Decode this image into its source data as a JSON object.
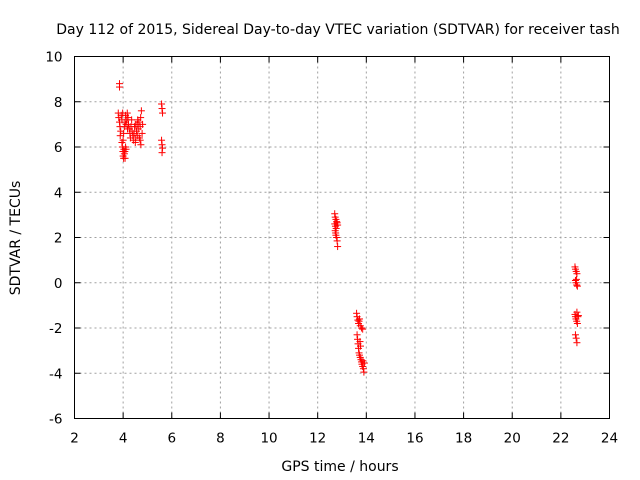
{
  "chart_data": {
    "type": "scatter",
    "title": "Day 112 of 2015, Sidereal Day-to-day VTEC variation (SDTVAR) for receiver tash",
    "xlabel": "GPS time / hours",
    "ylabel": "SDTVAR / TECUs",
    "xlim": [
      2,
      24
    ],
    "ylim": [
      -6,
      10
    ],
    "xticks": [
      2,
      4,
      6,
      8,
      10,
      12,
      14,
      16,
      18,
      20,
      22,
      24
    ],
    "yticks": [
      -6,
      -4,
      -2,
      0,
      2,
      4,
      6,
      8,
      10
    ],
    "grid": true,
    "marker": "+",
    "color": "#ff0000",
    "series": [
      {
        "name": "SDTVAR",
        "points": [
          [
            3.85,
            8.8
          ],
          [
            3.85,
            8.65
          ],
          [
            3.8,
            7.5
          ],
          [
            3.82,
            7.3
          ],
          [
            3.85,
            7.1
          ],
          [
            3.87,
            6.9
          ],
          [
            3.9,
            6.7
          ],
          [
            3.88,
            6.5
          ],
          [
            3.92,
            7.4
          ],
          [
            3.95,
            7.2
          ],
          [
            3.98,
            7.5
          ],
          [
            3.95,
            6.2
          ],
          [
            3.97,
            6.0
          ],
          [
            3.99,
            5.8
          ],
          [
            4.0,
            5.6
          ],
          [
            4.02,
            5.5
          ],
          [
            4.05,
            5.7
          ],
          [
            4.03,
            5.9
          ],
          [
            4.07,
            5.8
          ],
          [
            4.1,
            6.0
          ],
          [
            4.12,
            5.9
          ],
          [
            4.08,
            5.5
          ],
          [
            4.0,
            6.3
          ],
          [
            4.02,
            6.6
          ],
          [
            4.05,
            6.9
          ],
          [
            4.08,
            7.1
          ],
          [
            4.1,
            7.4
          ],
          [
            4.12,
            7.0
          ],
          [
            4.15,
            7.2
          ],
          [
            4.17,
            7.5
          ],
          [
            4.2,
            7.3
          ],
          [
            4.18,
            6.8
          ],
          [
            4.22,
            7.0
          ],
          [
            4.25,
            6.8
          ],
          [
            4.28,
            6.6
          ],
          [
            4.3,
            6.4
          ],
          [
            4.32,
            6.9
          ],
          [
            4.35,
            7.2
          ],
          [
            4.37,
            6.7
          ],
          [
            4.4,
            6.5
          ],
          [
            4.42,
            6.3
          ],
          [
            4.45,
            6.6
          ],
          [
            4.47,
            6.9
          ],
          [
            4.5,
            6.2
          ],
          [
            4.52,
            6.4
          ],
          [
            4.55,
            6.7
          ],
          [
            4.57,
            7.0
          ],
          [
            4.6,
            6.5
          ],
          [
            4.62,
            6.8
          ],
          [
            4.65,
            7.1
          ],
          [
            4.67,
            6.4
          ],
          [
            4.7,
            6.9
          ],
          [
            4.72,
            7.3
          ],
          [
            4.75,
            7.6
          ],
          [
            4.7,
            6.3
          ],
          [
            4.73,
            6.1
          ],
          [
            4.78,
            6.6
          ],
          [
            4.8,
            7.0
          ],
          [
            4.6,
            7.2
          ],
          [
            4.5,
            7.0
          ],
          [
            5.58,
            7.9
          ],
          [
            5.6,
            7.7
          ],
          [
            5.62,
            7.5
          ],
          [
            5.58,
            6.3
          ],
          [
            5.6,
            6.1
          ],
          [
            5.62,
            5.95
          ],
          [
            5.6,
            5.75
          ],
          [
            12.7,
            3.05
          ],
          [
            12.72,
            2.9
          ],
          [
            12.75,
            2.8
          ],
          [
            12.78,
            2.7
          ],
          [
            12.7,
            2.6
          ],
          [
            12.73,
            2.5
          ],
          [
            12.76,
            2.4
          ],
          [
            12.8,
            2.65
          ],
          [
            12.82,
            2.55
          ],
          [
            12.72,
            2.3
          ],
          [
            12.75,
            2.1
          ],
          [
            12.78,
            2.0
          ],
          [
            12.8,
            1.85
          ],
          [
            12.82,
            1.6
          ],
          [
            12.74,
            2.2
          ],
          [
            13.6,
            -1.35
          ],
          [
            13.62,
            -1.5
          ],
          [
            13.65,
            -1.65
          ],
          [
            13.68,
            -1.8
          ],
          [
            13.7,
            -1.7
          ],
          [
            13.72,
            -1.6
          ],
          [
            13.75,
            -1.9
          ],
          [
            13.8,
            -2.0
          ],
          [
            13.85,
            -2.05
          ],
          [
            13.62,
            -2.3
          ],
          [
            13.64,
            -2.5
          ],
          [
            13.66,
            -2.7
          ],
          [
            13.68,
            -2.9
          ],
          [
            13.7,
            -3.1
          ],
          [
            13.72,
            -3.2
          ],
          [
            13.75,
            -3.3
          ],
          [
            13.78,
            -3.4
          ],
          [
            13.8,
            -3.5
          ],
          [
            13.82,
            -3.6
          ],
          [
            13.85,
            -3.7
          ],
          [
            13.88,
            -3.8
          ],
          [
            13.9,
            -3.95
          ],
          [
            13.86,
            -3.45
          ],
          [
            13.92,
            -3.55
          ],
          [
            13.76,
            -2.8
          ],
          [
            13.74,
            -2.6
          ],
          [
            22.58,
            0.7
          ],
          [
            22.6,
            0.6
          ],
          [
            22.63,
            0.5
          ],
          [
            22.66,
            0.4
          ],
          [
            22.6,
            0.1
          ],
          [
            22.62,
            0.0
          ],
          [
            22.65,
            -0.1
          ],
          [
            22.68,
            -0.15
          ],
          [
            22.64,
            0.15
          ],
          [
            22.58,
            -1.4
          ],
          [
            22.6,
            -1.5
          ],
          [
            22.62,
            -1.6
          ],
          [
            22.65,
            -1.7
          ],
          [
            22.68,
            -1.8
          ],
          [
            22.7,
            -1.5
          ],
          [
            22.72,
            -1.45
          ],
          [
            22.66,
            -1.3
          ],
          [
            22.6,
            -2.3
          ],
          [
            22.63,
            -2.45
          ],
          [
            22.66,
            -2.65
          ]
        ]
      }
    ]
  }
}
